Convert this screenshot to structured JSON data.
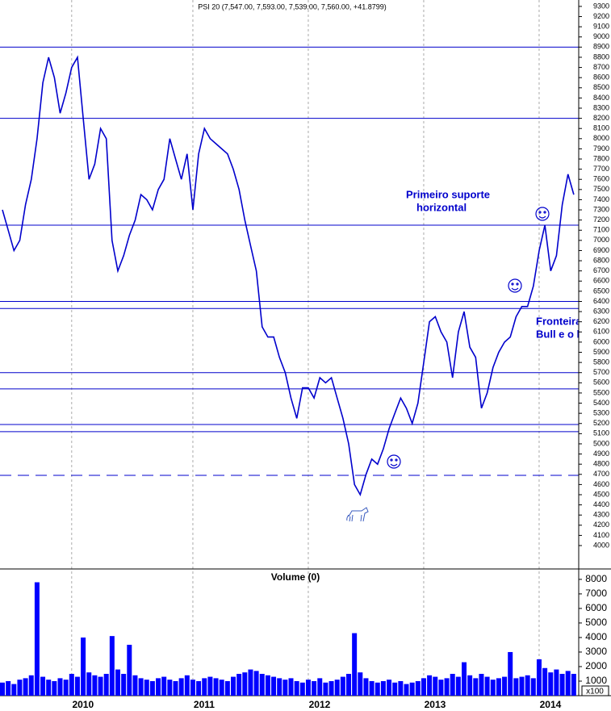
{
  "chart_data": [
    {
      "type": "line",
      "title": "PSI 20 (7,547.00, 7,593.00, 7,539.00, 7,560.00, +41.8799)",
      "color": "#0000cc",
      "categories": [
        null,
        null,
        null,
        null,
        null,
        null,
        null,
        null,
        null,
        null,
        null,
        null,
        "2010",
        null,
        null,
        null,
        null,
        null,
        null,
        null,
        null,
        null,
        null,
        null,
        null,
        null,
        null,
        null,
        null,
        null,
        null,
        null,
        null,
        "2011",
        null,
        null,
        null,
        null,
        null,
        null,
        null,
        null,
        null,
        null,
        null,
        null,
        null,
        null,
        null,
        null,
        null,
        null,
        null,
        "2012",
        null,
        null,
        null,
        null,
        null,
        null,
        null,
        null,
        null,
        null,
        null,
        null,
        null,
        null,
        null,
        null,
        null,
        null,
        null,
        "2013",
        null,
        null,
        null,
        null,
        null,
        null,
        null,
        null,
        null,
        null,
        null,
        null,
        null,
        null,
        null,
        null,
        null,
        null,
        null,
        "2014",
        null,
        null,
        null,
        null,
        null,
        null
      ],
      "values": [
        7300,
        7100,
        6900,
        7000,
        7350,
        7600,
        8000,
        8550,
        8800,
        8600,
        8250,
        8450,
        8700,
        8800,
        8200,
        7600,
        7750,
        8100,
        8000,
        7000,
        6700,
        6850,
        7050,
        7200,
        7450,
        7400,
        7300,
        7500,
        7600,
        8000,
        7800,
        7600,
        7850,
        7300,
        7850,
        8100,
        8000,
        7950,
        7900,
        7850,
        7700,
        7500,
        7200,
        6950,
        6700,
        6150,
        6050,
        6050,
        5850,
        5700,
        5450,
        5250,
        5550,
        5550,
        5450,
        5650,
        5600,
        5650,
        5450,
        5250,
        5000,
        4600,
        4500,
        4700,
        4850,
        4800,
        4950,
        5150,
        5300,
        5450,
        5350,
        5200,
        5400,
        5800,
        6200,
        6250,
        6100,
        6000,
        5650,
        6100,
        6300,
        5950,
        5850,
        5350,
        5500,
        5750,
        5900,
        6000,
        6050,
        6250,
        6350,
        6350,
        6550,
        6900,
        7150,
        6700,
        6850,
        7350,
        7650,
        7450
      ],
      "ylim": [
        3770,
        9363
      ],
      "yticks": [
        4000,
        4100,
        4200,
        4300,
        4400,
        4500,
        4600,
        4700,
        4800,
        4900,
        5000,
        5100,
        5200,
        5300,
        5400,
        5500,
        5600,
        5700,
        5800,
        5900,
        6000,
        6100,
        6200,
        6300,
        6400,
        6500,
        6600,
        6700,
        6800,
        6900,
        7000,
        7100,
        7200,
        7300,
        7400,
        7500,
        7600,
        7700,
        7800,
        7900,
        8000,
        8100,
        8200,
        8300,
        8400,
        8500,
        8600,
        8700,
        8800,
        8900,
        9000,
        9100,
        9200,
        9300
      ],
      "levels": [
        8900,
        8200,
        7150,
        6400,
        6330,
        5700,
        5540,
        5190,
        5120
      ],
      "dashed_levels": [
        4690
      ],
      "level_color": "#0000cc",
      "annotations": [
        "Primeiro suporte",
        "horizontal",
        "Fronteira",
        "Bull e o l"
      ]
    },
    {
      "type": "bar",
      "title": "Volume (0)",
      "color": "#0000ff",
      "categories": [
        null,
        null,
        null,
        null,
        null,
        null,
        null,
        null,
        null,
        null,
        null,
        null,
        "2010",
        null,
        null,
        null,
        null,
        null,
        null,
        null,
        null,
        null,
        null,
        null,
        null,
        null,
        null,
        null,
        null,
        null,
        null,
        null,
        null,
        "2011",
        null,
        null,
        null,
        null,
        null,
        null,
        null,
        null,
        null,
        null,
        null,
        null,
        null,
        null,
        null,
        null,
        null,
        null,
        null,
        "2012",
        null,
        null,
        null,
        null,
        null,
        null,
        null,
        null,
        null,
        null,
        null,
        null,
        null,
        null,
        null,
        null,
        null,
        null,
        null,
        "2013",
        null,
        null,
        null,
        null,
        null,
        null,
        null,
        null,
        null,
        null,
        null,
        null,
        null,
        null,
        null,
        null,
        null,
        null,
        null,
        "2014",
        null,
        null,
        null,
        null,
        null,
        null
      ],
      "values": [
        900,
        1000,
        800,
        1100,
        1200,
        1400,
        7800,
        1300,
        1100,
        1000,
        1200,
        1100,
        1500,
        1300,
        4000,
        1600,
        1400,
        1300,
        1500,
        4100,
        1800,
        1500,
        3500,
        1400,
        1200,
        1100,
        1000,
        1200,
        1300,
        1100,
        1000,
        1200,
        1400,
        1100,
        1000,
        1200,
        1300,
        1200,
        1100,
        1000,
        1300,
        1500,
        1600,
        1800,
        1700,
        1500,
        1400,
        1300,
        1200,
        1100,
        1200,
        1000,
        900,
        1100,
        1000,
        1200,
        900,
        1000,
        1100,
        1300,
        1500,
        4300,
        1600,
        1200,
        1000,
        900,
        1000,
        1100,
        900,
        1000,
        800,
        900,
        1000,
        1200,
        1400,
        1300,
        1100,
        1200,
        1500,
        1300,
        2300,
        1400,
        1200,
        1500,
        1300,
        1100,
        1200,
        1300,
        3000,
        1200,
        1300,
        1400,
        1200,
        2500,
        1900,
        1600,
        1800,
        1500,
        1700,
        1500
      ],
      "ylim": [
        0,
        8660
      ],
      "yticks": [
        1000,
        2000,
        3000,
        4000,
        5000,
        6000,
        7000,
        8000
      ],
      "scale_label": "x100"
    }
  ]
}
